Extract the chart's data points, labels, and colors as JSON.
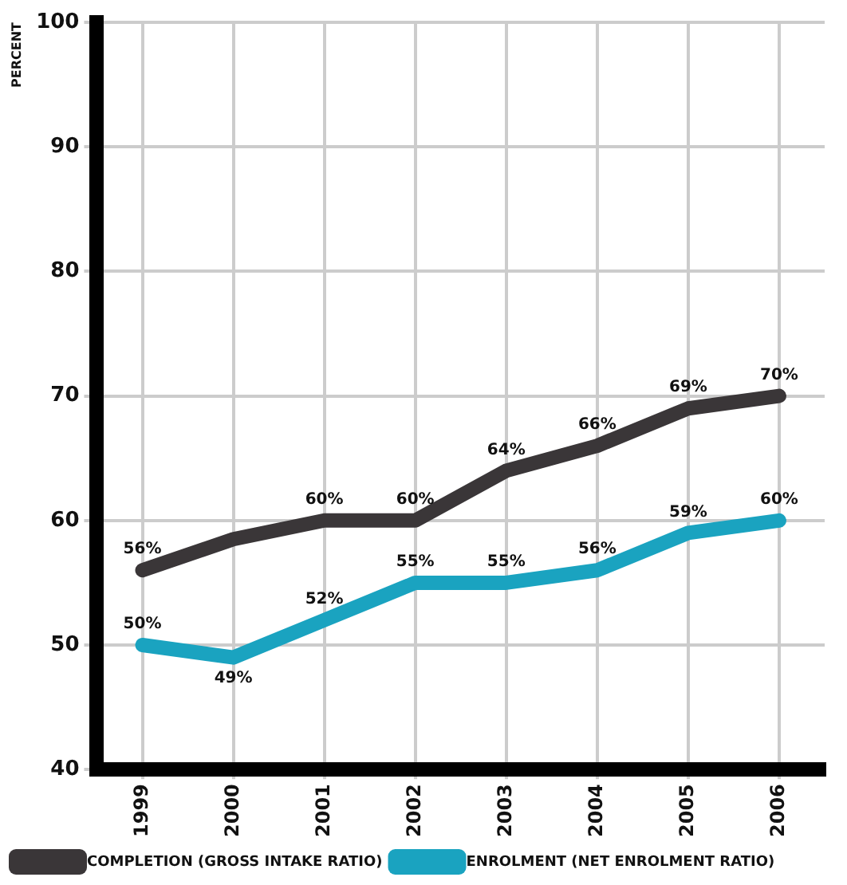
{
  "chart_data": {
    "type": "line",
    "ylabel": "PERCENT",
    "categories": [
      "1999",
      "2000",
      "2001",
      "2002",
      "2003",
      "2004",
      "2005",
      "2006"
    ],
    "series": [
      {
        "name": "COMPLETION (GROSS INTAKE RATIO)",
        "color": "#3a3638",
        "values": [
          56,
          58.5,
          60,
          60,
          64,
          66,
          69,
          70
        ],
        "value_labels": [
          "56%",
          null,
          "60%",
          "60%",
          "64%",
          "66%",
          "69%",
          "70%"
        ]
      },
      {
        "name": "ENROLMENT (NET ENROLMENT RATIO)",
        "color": "#1aa3c0",
        "values": [
          50,
          49,
          52,
          55,
          55,
          56,
          59,
          60
        ],
        "value_labels": [
          "50%",
          "49%",
          "52%",
          "55%",
          "55%",
          "56%",
          "59%",
          "60%"
        ]
      }
    ],
    "ylim": [
      40,
      100
    ],
    "yticks": [
      40,
      50,
      60,
      70,
      80,
      90,
      100
    ],
    "grid": true,
    "legend": "bottom",
    "marker": "none",
    "line_style": "solid"
  }
}
